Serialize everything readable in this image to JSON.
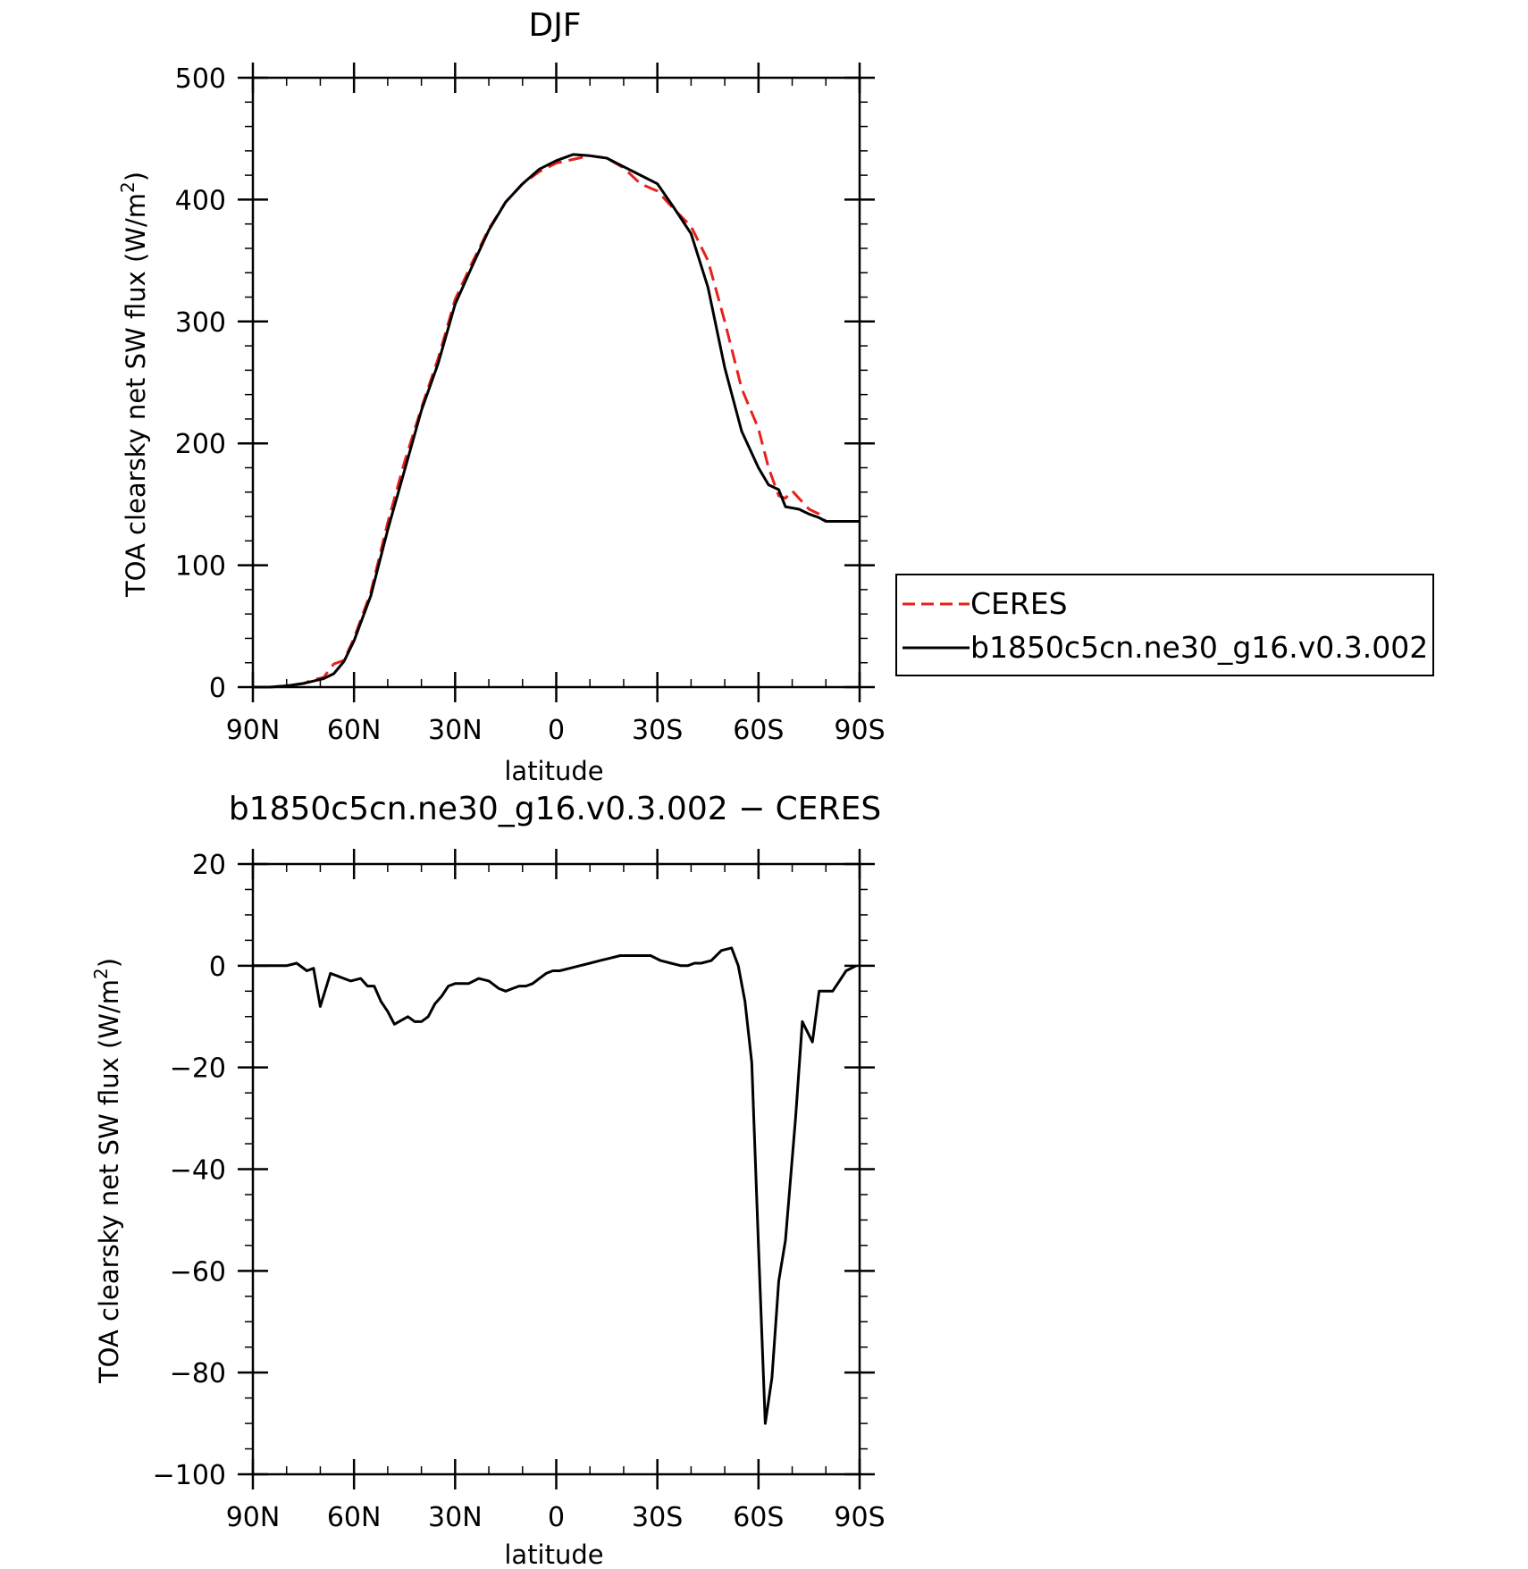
{
  "chart_data": [
    {
      "type": "line",
      "title": "DJF",
      "xlabel": "latitude",
      "ylabel": "TOA clearsky net SW flux (W/m",
      "ylabel_sup": "2",
      "ylabel_end": ")",
      "x_direction": "north-to-south",
      "xlim": [
        90,
        -90
      ],
      "ylim": [
        0,
        500
      ],
      "x_tick_values": [
        90,
        60,
        30,
        0,
        -30,
        -60,
        -90
      ],
      "x_tick_labels": [
        "90N",
        "60N",
        "30N",
        "0",
        "30S",
        "60S",
        "90S"
      ],
      "y_tick_values": [
        0,
        100,
        200,
        300,
        400,
        500
      ],
      "y_tick_labels": [
        "0",
        "100",
        "200",
        "300",
        "400",
        "500"
      ],
      "legend": {
        "placement": "right",
        "entries": [
          "CERES",
          "b1850c5cn.ne30_g16.v0.3.002"
        ]
      },
      "series": [
        {
          "name": "CERES",
          "color": "#e8201c",
          "dash": "dashed",
          "x": [
            90,
            85,
            80,
            75,
            72,
            69,
            66,
            63,
            60,
            55,
            50,
            45,
            40,
            35,
            30,
            25,
            20,
            15,
            10,
            5,
            0,
            -5,
            -10,
            -15,
            -20,
            -25,
            -30,
            -35,
            -40,
            -45,
            -50,
            -55,
            -60,
            -63,
            -66,
            -68,
            -70,
            -72,
            -75,
            -78,
            -80,
            -82,
            -84,
            -87,
            -90
          ],
          "y": [
            0,
            0,
            1,
            3,
            6,
            8,
            19,
            22,
            40,
            78,
            135,
            185,
            229,
            270,
            318,
            348,
            376,
            398,
            413,
            423,
            430,
            433,
            436,
            434,
            426,
            413,
            407,
            392,
            378,
            350,
            300,
            245,
            212,
            180,
            157,
            155,
            161,
            155,
            146,
            142,
            136,
            136,
            136,
            136,
            136
          ]
        },
        {
          "name": "b1850c5cn.ne30_g16.v0.3.002",
          "color": "#000000",
          "dash": "solid",
          "x": [
            90,
            85,
            80,
            75,
            72,
            69,
            66,
            63,
            60,
            55,
            50,
            45,
            40,
            35,
            30,
            25,
            20,
            15,
            10,
            5,
            0,
            -5,
            -10,
            -15,
            -20,
            -25,
            -30,
            -35,
            -40,
            -45,
            -50,
            -55,
            -60,
            -63,
            -66,
            -68,
            -70,
            -72,
            -75,
            -78,
            -80,
            -82,
            -84,
            -87,
            -90
          ],
          "y": [
            0,
            0,
            1,
            3,
            5,
            7,
            11,
            21,
            38,
            75,
            129,
            178,
            227,
            266,
            314,
            345,
            375,
            398,
            413,
            425,
            432,
            437,
            436,
            434,
            427,
            420,
            413,
            393,
            372,
            328,
            262,
            210,
            180,
            166,
            162,
            148,
            147,
            146,
            142,
            139,
            136,
            136,
            136,
            136,
            136
          ]
        }
      ]
    },
    {
      "type": "line",
      "title": "b1850c5cn.ne30_g16.v0.3.002 − CERES",
      "xlabel": "latitude",
      "ylabel": "TOA clearsky net SW flux (W/m",
      "ylabel_sup": "2",
      "ylabel_end": ")",
      "x_direction": "north-to-south",
      "xlim": [
        90,
        -90
      ],
      "ylim": [
        -100,
        20
      ],
      "x_tick_values": [
        90,
        60,
        30,
        0,
        -30,
        -60,
        -90
      ],
      "x_tick_labels": [
        "90N",
        "60N",
        "30N",
        "0",
        "30S",
        "60S",
        "90S"
      ],
      "y_tick_values": [
        20,
        0,
        -20,
        -40,
        -60,
        -80,
        -100
      ],
      "y_tick_labels": [
        "20",
        "0",
        "−20",
        "−40",
        "−60",
        "−80",
        "−100"
      ],
      "series": [
        {
          "color": "#000000",
          "dash": "solid",
          "x": [
            90,
            85,
            80,
            77,
            74,
            72,
            70,
            67,
            65,
            63,
            61,
            58,
            56,
            54,
            52,
            50,
            48,
            44,
            42,
            40,
            38,
            36,
            34,
            32,
            30,
            28,
            26,
            23,
            20,
            17,
            15,
            13,
            11,
            9,
            7,
            5,
            3,
            1,
            -1,
            -4,
            -7,
            -10,
            -13,
            -16,
            -19,
            -22,
            -25,
            -28,
            -31,
            -34,
            -37,
            -39,
            -41,
            -43,
            -46,
            -49,
            -52,
            -54,
            -56,
            -58,
            -60,
            -62,
            -64,
            -66,
            -68,
            -71,
            -73,
            -76,
            -78,
            -80,
            -82,
            -84,
            -86,
            -89
          ],
          "y": [
            0,
            0,
            0,
            0.5,
            -1,
            -0.5,
            -8,
            -1.5,
            -2,
            -2.5,
            -3,
            -2.5,
            -4,
            -4,
            -7,
            -9,
            -11.5,
            -10,
            -11,
            -11,
            -10,
            -7.5,
            -6,
            -4,
            -3.5,
            -3.5,
            -3.5,
            -2.5,
            -3,
            -4.5,
            -5,
            -4.5,
            -4,
            -4,
            -3.5,
            -2.5,
            -1.5,
            -1,
            -1,
            -0.5,
            0,
            0.5,
            1,
            1.5,
            2,
            2,
            2,
            2,
            1,
            0.5,
            0,
            0,
            0.5,
            0.5,
            1,
            3,
            3.5,
            0,
            -7,
            -19,
            -55,
            -90,
            -81,
            -62,
            -54,
            -30,
            -11,
            -15,
            -5,
            -5,
            -5,
            -3,
            -1,
            0
          ]
        }
      ]
    }
  ]
}
